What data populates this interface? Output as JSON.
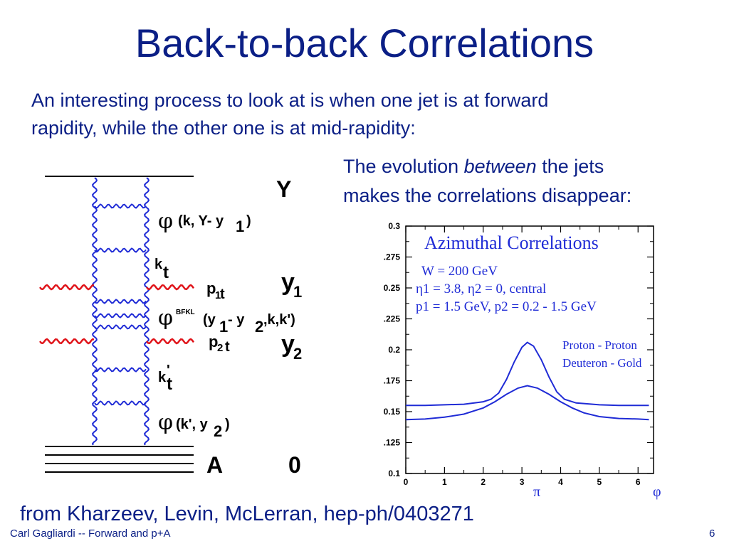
{
  "slide": {
    "title": "Back-to-back Correlations",
    "intro_line1": "An interesting process to look at is when one jet is at forward",
    "intro_line2": "rapidity, while the other one is at mid-rapidity:",
    "evolution_before": "The evolution ",
    "evolution_emph": "between",
    "evolution_after": " the jets",
    "evolution_line2": "makes the correlations disappear:",
    "citation": "from Kharzeev, Levin, McLerran, hep-ph/0403271",
    "footer_left": "Carl Gagliardi -- Forward and p+A",
    "footer_right": "6"
  },
  "diagram": {
    "label_Y": "Y",
    "label_y1": "y",
    "label_y1_sub": "1",
    "label_y2": "y",
    "label_y2_sub": "2",
    "label_A": "A",
    "label_0": "0",
    "phi_symbol": "φ",
    "phi1_text": "(k, Y- y",
    "phi1_sub": "1",
    "phi1_close": ")",
    "kt": "k",
    "kt_sub": "t",
    "p1": "p",
    "p1_sub1": "1",
    "p1_sub2": "t",
    "phi_bfkl_sup": "BFKL",
    "phi_bfkl_a": "(y",
    "phi_bfkl_sub1": "1",
    "phi_bfkl_b": " - y",
    "phi_bfkl_sub2": "2",
    "phi_bfkl_c": ",k,k')",
    "p2": "p",
    "p2_sub1": "2",
    "p2_sub2": "t",
    "kpt": "k",
    "kpt_prime": "'",
    "kpt_sub": "t",
    "phi3_text": "(k', y",
    "phi3_sub": "2",
    "phi3_close": ")"
  },
  "colors": {
    "title": "#0b1f86",
    "gluon": "#1f2bd6",
    "jet": "#e0141a",
    "curve": "#1f2bd6"
  },
  "chart_data": {
    "type": "line",
    "title": "Azimuthal Correlations",
    "annotations": [
      "W = 200 GeV",
      "η1 = 3.8, η2 = 0, central",
      "p1 = 1.5  GeV, p2 = 0.2 - 1.5 GeV"
    ],
    "xlabel_ticks_extra": [
      "π",
      "φ"
    ],
    "xlim": [
      0,
      6.4
    ],
    "ylim": [
      0.1,
      0.3
    ],
    "x_ticks": [
      0,
      1,
      2,
      3,
      4,
      5,
      6
    ],
    "y_ticks": [
      0.1,
      0.125,
      0.15,
      0.175,
      0.2,
      0.225,
      0.25,
      0.275,
      0.3
    ],
    "y_tick_labels": [
      "0.1",
      ".125",
      "0.15",
      ".175",
      "0.2",
      ".225",
      "0.25",
      ".275",
      "0.3"
    ],
    "series": [
      {
        "name": "Proton - Proton",
        "x": [
          0,
          0.5,
          1.0,
          1.5,
          2.0,
          2.2,
          2.4,
          2.6,
          2.8,
          3.0,
          3.14,
          3.3,
          3.5,
          3.7,
          3.9,
          4.1,
          4.4,
          5.0,
          5.5,
          6.0,
          6.28
        ],
        "y": [
          0.155,
          0.155,
          0.1555,
          0.156,
          0.158,
          0.16,
          0.165,
          0.176,
          0.19,
          0.202,
          0.206,
          0.203,
          0.192,
          0.178,
          0.166,
          0.16,
          0.157,
          0.1555,
          0.155,
          0.155,
          0.155
        ]
      },
      {
        "name": "Deuteron - Gold",
        "x": [
          0,
          0.5,
          1.0,
          1.5,
          2.0,
          2.3,
          2.6,
          2.9,
          3.14,
          3.4,
          3.7,
          4.0,
          4.3,
          4.6,
          5.0,
          5.5,
          6.0,
          6.28
        ],
        "y": [
          0.1435,
          0.144,
          0.1455,
          0.148,
          0.153,
          0.158,
          0.164,
          0.169,
          0.171,
          0.169,
          0.164,
          0.158,
          0.153,
          0.149,
          0.146,
          0.1445,
          0.144,
          0.1435
        ]
      }
    ]
  }
}
